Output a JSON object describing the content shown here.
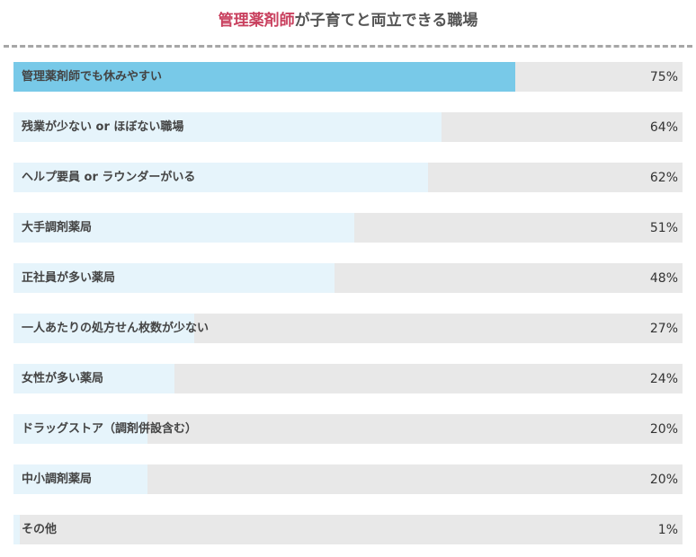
{
  "title": {
    "highlight": "管理薬剤師",
    "rest": "が子育てと両立できる職場"
  },
  "colors": {
    "title_highlight": "#c9415f",
    "top_bar": "#78c9e8",
    "bar": "#e6f4fb",
    "track": "#e8e8e8"
  },
  "chart_data": {
    "type": "bar",
    "orientation": "horizontal",
    "title": "管理薬剤師が子育てと両立できる職場",
    "categories": [
      "管理薬剤師でも休みやすい",
      "残業が少ない or ほぼない職場",
      "ヘルプ要員 or ラウンダーがいる",
      "大手調剤薬局",
      "正社員が多い薬局",
      "一人あたりの処方せん枚数が少ない",
      "女性が多い薬局",
      "ドラッグストア（調剤併設含む）",
      "中小調剤薬局",
      "その他"
    ],
    "values": [
      75,
      64,
      62,
      51,
      48,
      27,
      24,
      20,
      20,
      1
    ],
    "value_labels": [
      "75%",
      "64%",
      "62%",
      "51%",
      "48%",
      "27%",
      "24%",
      "20%",
      "20%",
      "1%"
    ],
    "xlim": [
      0,
      100
    ],
    "unit": "%",
    "grid": false
  }
}
